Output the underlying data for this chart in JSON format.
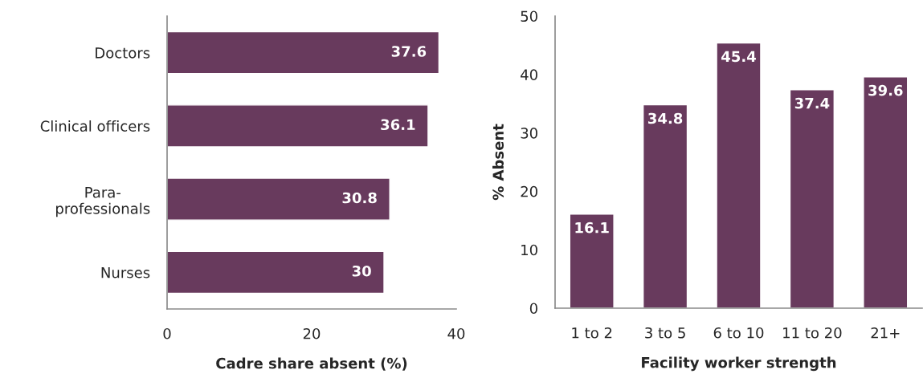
{
  "chart_data": [
    {
      "type": "bar",
      "orientation": "horizontal",
      "categories": [
        "Doctors",
        "Clinical officers",
        "Para-\nprofessionals",
        "Nurses"
      ],
      "values": [
        37.6,
        36.1,
        30.8,
        30
      ],
      "color": "#683a5d",
      "xlabel": "Cadre share absent (%)",
      "xlim": [
        0,
        40
      ],
      "xticks": [
        0,
        20,
        40
      ],
      "data_labels": true
    },
    {
      "type": "bar",
      "categories": [
        "1 to 2",
        "3 to 5",
        "6 to 10",
        "11 to 20",
        "21+"
      ],
      "values": [
        16.1,
        34.8,
        45.4,
        37.4,
        39.6
      ],
      "color": "#683a5d",
      "xlabel": "Facility worker strength",
      "ylabel": "% Absent",
      "ylim": [
        0,
        50
      ],
      "yticks": [
        0,
        10,
        20,
        30,
        40,
        50
      ],
      "data_labels": true
    }
  ]
}
